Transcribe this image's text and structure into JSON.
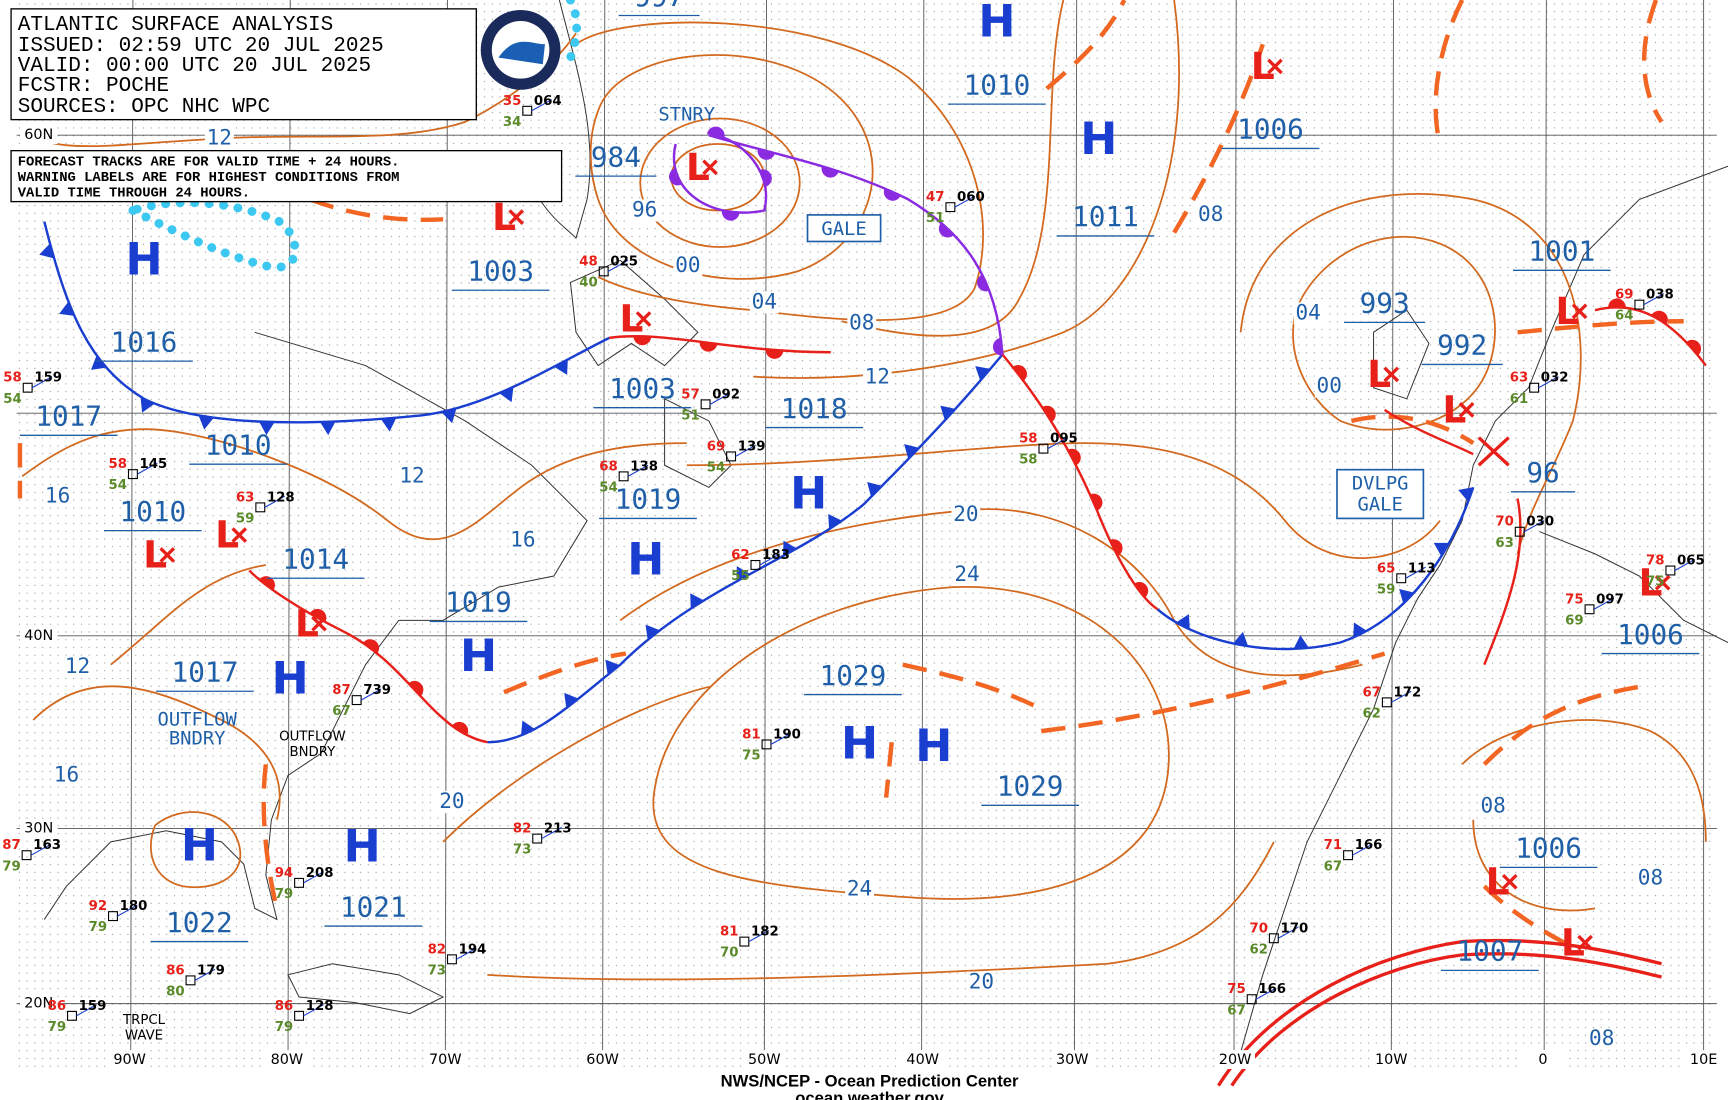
{
  "header": {
    "lines": [
      "ATLANTIC SURFACE ANALYSIS",
      "ISSUED: 02:59 UTC 20 JUL 2025",
      "VALID:  00:00 UTC 20 JUL 2025",
      "FCSTR:  POCHE",
      "SOURCES: OPC NHC WPC"
    ]
  },
  "note": {
    "lines": [
      "FORECAST TRACKS ARE FOR VALID TIME + 24 HOURS.",
      "WARNING LABELS ARE FOR HIGHEST CONDITIONS FROM",
      "VALID TIME THROUGH 24 HOURS."
    ]
  },
  "grid": {
    "latitudes": [
      "60N",
      "40N",
      "30N",
      "20N"
    ],
    "longitudes": [
      "90W",
      "80W",
      "70W",
      "60W",
      "50W",
      "40W",
      "30W",
      "20W",
      "10W",
      "0",
      "10E"
    ]
  },
  "centers": {
    "high": "H",
    "low": "L"
  },
  "pressure_labels": [
    "997",
    "1010",
    "1006",
    "984",
    "1003",
    "1011",
    "1016",
    "1017",
    "1010",
    "1010",
    "1014",
    "1003",
    "1018",
    "1019",
    "1019",
    "1017",
    "993",
    "992",
    "1001",
    "96",
    "1029",
    "1029",
    "1006",
    "1022",
    "1021",
    "1006",
    "1007"
  ],
  "isobar_labels": [
    "12",
    "16",
    "12",
    "16",
    "12",
    "16",
    "20",
    "96",
    "00",
    "04",
    "08",
    "12",
    "20",
    "24",
    "24",
    "20",
    "08",
    "04",
    "00",
    "08",
    "08",
    "08"
  ],
  "features": {
    "stationary": "STNRY",
    "gale": "GALE",
    "developing_gale": [
      "DVLPG",
      "GALE"
    ],
    "outflow_boundary": [
      "OUTFLOW",
      "BNDRY"
    ],
    "outflow_boundary_small": [
      "OUTFLOW",
      "BNDRY"
    ],
    "tropical_wave": [
      "TRPCL",
      "WAVE"
    ]
  },
  "stations": [
    {
      "pressure": "064",
      "temperature": "35",
      "dewpoint": "34"
    },
    {
      "pressure": "025",
      "temperature": "48",
      "dewpoint": "40"
    },
    {
      "pressure": "092",
      "temperature": "57",
      "dewpoint": "51"
    },
    {
      "pressure": "060",
      "temperature": "47",
      "dewpoint": "51"
    },
    {
      "pressure": "095",
      "temperature": "58",
      "dewpoint": "58"
    },
    {
      "pressure": "159",
      "temperature": "58",
      "dewpoint": "54"
    },
    {
      "pressure": "145",
      "temperature": "58",
      "dewpoint": "54"
    },
    {
      "pressure": "128",
      "temperature": "63",
      "dewpoint": "59"
    },
    {
      "pressure": "138",
      "temperature": "68",
      "dewpoint": "54"
    },
    {
      "pressure": "139",
      "temperature": "69",
      "dewpoint": "54"
    },
    {
      "pressure": "183",
      "temperature": "62",
      "dewpoint": "55"
    },
    {
      "pressure": "739",
      "temperature": "87",
      "dewpoint": "67"
    },
    {
      "pressure": "190",
      "temperature": "81",
      "dewpoint": "75"
    },
    {
      "pressure": "213",
      "temperature": "82",
      "dewpoint": "73"
    },
    {
      "pressure": "208",
      "temperature": "94",
      "dewpoint": "79"
    },
    {
      "pressure": "194",
      "temperature": "82",
      "dewpoint": "73"
    },
    {
      "pressure": "182",
      "temperature": "81",
      "dewpoint": "70"
    },
    {
      "pressure": "179",
      "temperature": "86",
      "dewpoint": "80"
    },
    {
      "pressure": "180",
      "temperature": "92",
      "dewpoint": "79"
    },
    {
      "pressure": "163",
      "temperature": "87",
      "dewpoint": "79"
    },
    {
      "pressure": "159",
      "temperature": "86",
      "dewpoint": "79"
    },
    {
      "pressure": "128",
      "temperature": "86",
      "dewpoint": "79"
    },
    {
      "pressure": "166",
      "temperature": "71",
      "dewpoint": "67"
    },
    {
      "pressure": "170",
      "temperature": "70",
      "dewpoint": "62"
    },
    {
      "pressure": "166",
      "temperature": "75",
      "dewpoint": "67"
    },
    {
      "pressure": "172",
      "temperature": "67",
      "dewpoint": "62"
    },
    {
      "pressure": "113",
      "temperature": "65",
      "dewpoint": "59"
    },
    {
      "pressure": "030",
      "temperature": "70",
      "dewpoint": "63"
    },
    {
      "pressure": "032",
      "temperature": "63",
      "dewpoint": "61"
    },
    {
      "pressure": "038",
      "temperature": "69",
      "dewpoint": "64"
    },
    {
      "pressure": "097",
      "temperature": "75",
      "dewpoint": "69"
    },
    {
      "pressure": "065",
      "temperature": "78",
      "dewpoint": "75"
    }
  ],
  "footer": {
    "lines": [
      "NWS/NCEP - Ocean Prediction Center",
      "ocean.weather.gov"
    ]
  }
}
